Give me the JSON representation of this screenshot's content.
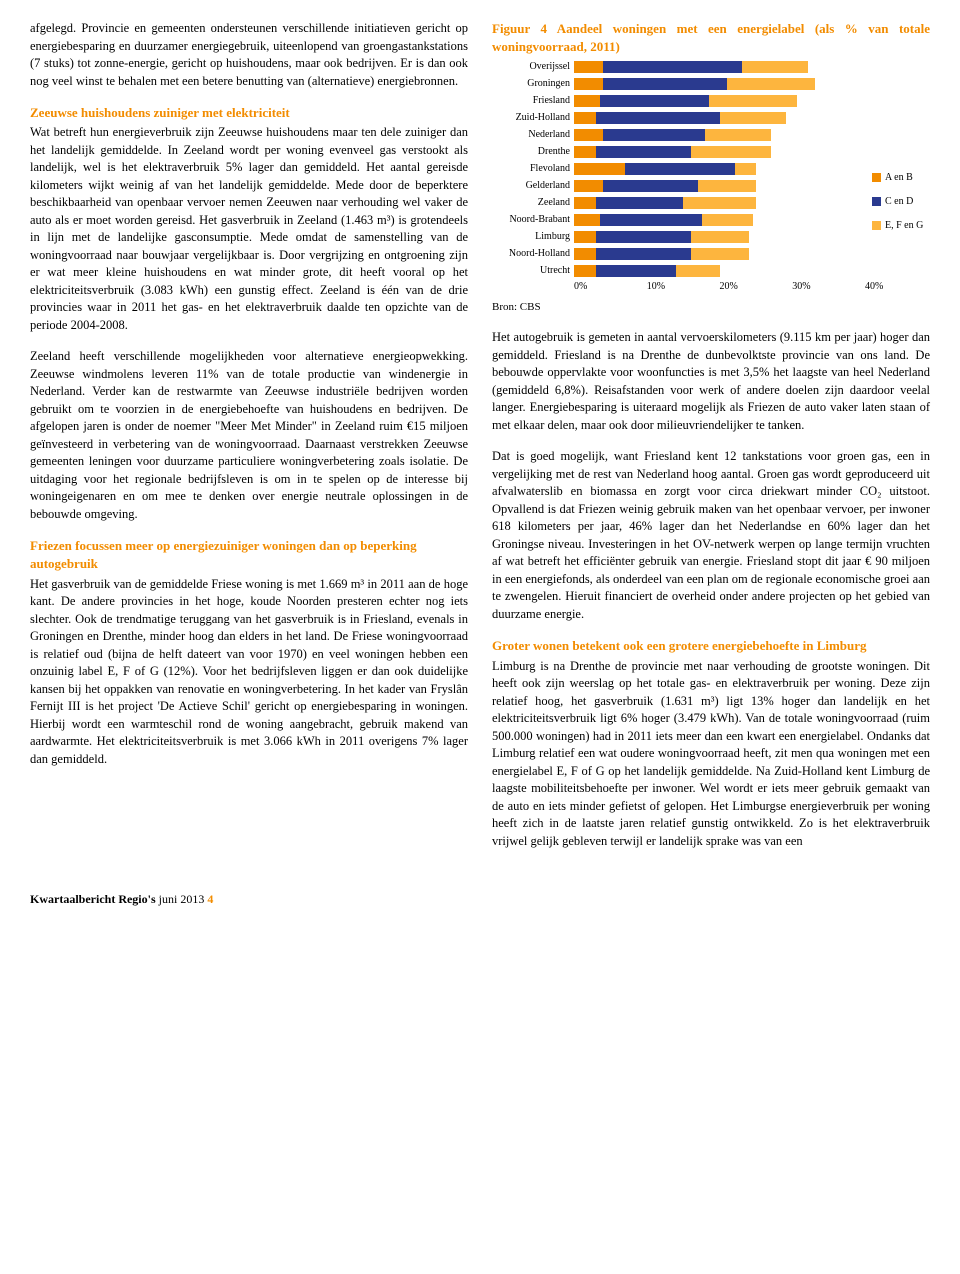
{
  "colors": {
    "accent": "#f28c00",
    "seg_a": "#f28c00",
    "seg_c": "#2a3a8f",
    "seg_e": "#fdb53e",
    "text": "#000000",
    "bg": "#ffffff"
  },
  "left": {
    "p1": "afgelegd. Provincie en gemeenten ondersteunen verschillende initiatieven gericht op energiebesparing en duurzamer energiegebruik, uiteenlopend van groengastankstations (7 stuks) tot zonne-energie, gericht op huishoudens, maar ook bedrijven. Er is dan ook nog veel winst te behalen met een betere benutting van (alternatieve) energiebronnen.",
    "h1": "Zeeuwse huishoudens zuiniger met elektriciteit",
    "p2": "Wat betreft hun energieverbruik zijn Zeeuwse huishoudens maar ten dele zuiniger dan het landelijk gemiddelde. In Zeeland wordt per woning evenveel gas verstookt als landelijk, wel is het elektraverbruik 5% lager dan gemiddeld. Het aantal gereisde kilometers wijkt weinig af van het landelijk gemiddelde. Mede door de beperktere beschikbaarheid van openbaar vervoer nemen Zeeuwen naar verhouding wel vaker de auto als er moet worden gereisd. Het gasverbruik in Zeeland (1.463 m³) is grotendeels in lijn met de landelijke gasconsumptie. Mede omdat de samenstelling van de woningvoorraad naar bouwjaar vergelijkbaar is. Door vergrijzing en ontgroening zijn er wat meer kleine huishoudens en wat minder grote, dit heeft vooral op het elektriciteitsverbruik (3.083 kWh) een gunstig effect. Zeeland is één van de drie provincies waar in 2011 het gas- en het elektraverbruik daalde ten opzichte van de periode 2004-2008.",
    "p3": "Zeeland heeft verschillende mogelijkheden voor alternatieve energieopwekking. Zeeuwse windmolens leveren 11% van de totale productie van windenergie in Nederland. Verder kan de restwarmte van Zeeuwse industriële bedrijven worden gebruikt om te voorzien in de energiebehoefte van huishoudens en bedrijven. De afgelopen jaren is onder de noemer \"Meer Met Minder\" in Zeeland ruim €15 miljoen geïnvesteerd in verbetering van de woningvoorraad. Daarnaast verstrekken Zeeuwse gemeenten leningen voor duurzame particuliere woningverbetering zoals isolatie. De uitdaging voor het regionale bedrijfsleven is om in te spelen op de interesse bij woningeigenaren en om mee te denken over energie neutrale oplossingen in de bebouwde omgeving.",
    "h2": "Friezen focussen meer op energiezuiniger woningen dan op beperking autogebruik",
    "p4": "Het gasverbruik van de gemiddelde Friese woning is met 1.669 m³ in 2011 aan de hoge kant. De andere provincies in het hoge, koude Noorden presteren echter nog iets slechter. Ook de trendmatige teruggang van het gasverbruik is in Friesland, evenals in Groningen en Drenthe, minder hoog dan elders in het land. De Friese woningvoorraad is relatief oud (bijna de helft dateert van voor 1970) en veel woningen hebben een onzuinig label E, F of G (12%). Voor het bedrijfsleven liggen er dan ook duidelijke kansen bij het oppakken van renovatie en woningverbetering. In het kader van Fryslân Fernijt III is het project 'De Actieve Schil' gericht op energiebesparing in woningen. Hierbij wordt een warmteschil rond de woning aangebracht, gebruik makend van aardwarmte. Het elektriciteitsverbruik is met 3.066 kWh in 2011 overigens 7% lager dan gemiddeld."
  },
  "right": {
    "p5": "Het autogebruik is gemeten in aantal vervoerskilometers (9.115 km per jaar) hoger dan gemiddeld. Friesland is na Drenthe de dunbevolktste provincie van ons land. De bebouwde oppervlakte voor woonfuncties is met 3,5% het laagste van heel Nederland (gemiddeld 6,8%). Reisafstanden voor werk of andere doelen zijn daardoor veelal langer. Energiebesparing is uiteraard mogelijk als Friezen de auto vaker laten staan of met elkaar delen, maar ook door milieuvriendelijker te tanken.",
    "p6": "Dat is goed mogelijk, want Friesland kent 12 tankstations voor groen gas, een in vergelijking met de rest van Nederland hoog aantal. Groen gas wordt geproduceerd uit afvalwaterslib en biomassa en zorgt voor circa driekwart minder CO₂ uitstoot. Opvallend is dat Friezen weinig gebruik maken van het openbaar vervoer, per inwoner 618 kilometers per jaar, 46% lager dan het Nederlandse en 60% lager dan het Groningse niveau. Investeringen in het OV-netwerk werpen op lange termijn vruchten af wat betreft het efficiënter gebruik van energie. Friesland stopt dit jaar € 90 miljoen in een energiefonds, als onderdeel van een plan om de regionale economische groei aan te zwengelen. Hieruit financiert de overheid onder andere projecten op het gebied van duurzame energie.",
    "h3": "Groter wonen betekent ook een grotere energiebehoefte in Limburg",
    "p7": "Limburg is na Drenthe de provincie met naar verhouding de grootste woningen. Dit heeft ook zijn weerslag op het totale gas- en elektraverbruik per woning. Deze zijn relatief hoog, het gasverbruik (1.631 m³) ligt 13% hoger dan landelijk en het elektriciteitsverbruik ligt 6% hoger (3.479 kWh). Van de totale woningvoorraad (ruim 500.000 woningen) had in 2011 iets meer dan een kwart een energielabel. Ondanks dat Limburg relatief een wat oudere woningvoorraad heeft, zit men qua woningen met een energielabel E, F of G op het landelijk gemiddelde. Na Zuid-Holland kent Limburg de laagste mobiliteitsbehoefte per inwoner. Wel wordt er iets meer gebruik gemaakt van de auto en iets minder gefietst of gelopen. Het Limburgse energieverbruik per woning heeft zich in de laatste jaren relatief gunstig ontwikkeld. Zo is het elektraverbruik vrijwel gelijk gebleven terwijl er landelijk sprake was van een"
  },
  "chart": {
    "title": "Figuur 4 Aandeel woningen met een energielabel (als % van totale woningvoorraad, 2011)",
    "xmax": 40,
    "xticks": [
      "0%",
      "10%",
      "20%",
      "30%",
      "40%"
    ],
    "legend": [
      {
        "label": "A en B",
        "color": "#f28c00"
      },
      {
        "label": "C en D",
        "color": "#2a3a8f"
      },
      {
        "label": "E, F en G",
        "color": "#fdb53e"
      }
    ],
    "rows": [
      {
        "label": "Overijssel",
        "a": 4,
        "c": 19,
        "e": 9
      },
      {
        "label": "Groningen",
        "a": 4,
        "c": 17,
        "e": 12
      },
      {
        "label": "Friesland",
        "a": 3.5,
        "c": 15,
        "e": 12
      },
      {
        "label": "Zuid-Holland",
        "a": 3,
        "c": 17,
        "e": 9
      },
      {
        "label": "Nederland",
        "a": 4,
        "c": 14,
        "e": 9
      },
      {
        "label": "Drenthe",
        "a": 3,
        "c": 13,
        "e": 11
      },
      {
        "label": "Flevoland",
        "a": 7,
        "c": 15,
        "e": 3
      },
      {
        "label": "Gelderland",
        "a": 4,
        "c": 13,
        "e": 8
      },
      {
        "label": "Zeeland",
        "a": 3,
        "c": 12,
        "e": 10
      },
      {
        "label": "Noord-Brabant",
        "a": 3.5,
        "c": 14,
        "e": 7
      },
      {
        "label": "Limburg",
        "a": 3,
        "c": 13,
        "e": 8
      },
      {
        "label": "Noord-Holland",
        "a": 3,
        "c": 13,
        "e": 8
      },
      {
        "label": "Utrecht",
        "a": 3,
        "c": 11,
        "e": 6
      }
    ],
    "bron": "Bron: CBS"
  },
  "footer": {
    "title": "Kwartaalbericht Regio's",
    "date": "juni 2013",
    "page": "4"
  }
}
